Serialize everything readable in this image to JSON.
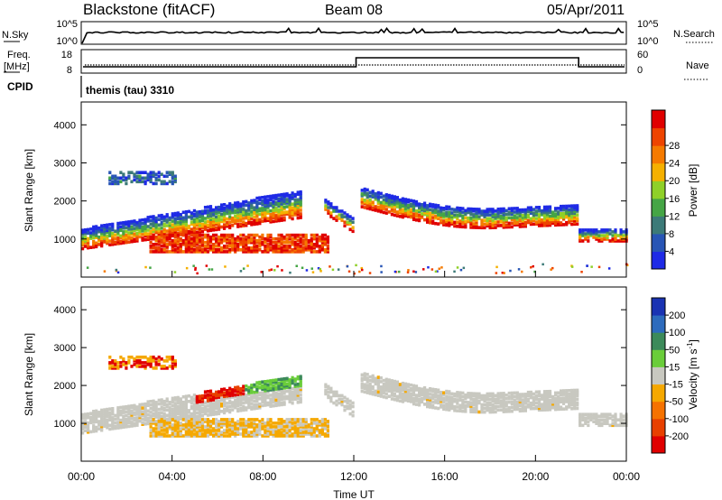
{
  "header": {
    "title": "Blackstone (fitACF)",
    "beam": "Beam 08",
    "date": "05/Apr/2011"
  },
  "status_panels": {
    "nsky_label": "N.Sky",
    "nsky_ticks": [
      "10^5",
      "10^0"
    ],
    "nsearch_label": "N.Search",
    "nsearch_ticks": [
      "10^5",
      "10^0"
    ],
    "freq_label_1": "Freq.",
    "freq_label_2": "[MHz]",
    "freq_ticks": [
      "18",
      "8"
    ],
    "nave_label": "Nave",
    "nave_ticks": [
      "60",
      "0"
    ],
    "cpid_label": "CPID",
    "cpid_value": "themis (tau) 3310"
  },
  "chart_data": [
    {
      "type": "heatmap",
      "name": "power",
      "ylabel": "Slant Range [km]",
      "yticks": [
        "1000",
        "2000",
        "3000",
        "4000"
      ],
      "ylim": [
        0,
        4600
      ],
      "xlim": [
        0,
        24
      ],
      "colorbar_label": "Power [dB]",
      "colorbar_ticks": [
        "4",
        "8",
        "12",
        "16",
        "20",
        "24",
        "28"
      ],
      "colorbar_colors": [
        "#1e2ae6",
        "#2855b5",
        "#3c7a78",
        "#45a545",
        "#8fd028",
        "#f5b000",
        "#f57a00",
        "#ee4400",
        "#e00000"
      ]
    },
    {
      "type": "heatmap",
      "name": "velocity",
      "ylabel": "Slant Range [km]",
      "yticks": [
        "1000",
        "2000",
        "3000",
        "4000"
      ],
      "ylim": [
        0,
        4600
      ],
      "xlim": [
        0,
        24
      ],
      "xlabel": "Time UT",
      "xticks": [
        "00:00",
        "04:00",
        "08:00",
        "12:00",
        "16:00",
        "20:00",
        "00:00"
      ],
      "colorbar_label_main": "Velocity [m s",
      "colorbar_label_exp": "-1",
      "colorbar_label_end": "]",
      "colorbar_ticks": [
        "200",
        "100",
        "50",
        "15",
        "-15",
        "-50",
        "-100",
        "-200"
      ],
      "colorbar_colors": [
        "#1a33b3",
        "#2d6bbd",
        "#3c8a5a",
        "#6acd3a",
        "#c8c8c0",
        "#f5a800",
        "#f57200",
        "#e84000",
        "#e00000"
      ]
    }
  ],
  "colors": {
    "power_low": "#1e2ae6",
    "power_mid": "#45a545",
    "power_high": "#e00000",
    "velocity_gray": "#c8c8c0",
    "velocity_orange": "#f5a800",
    "velocity_red": "#e00000"
  }
}
